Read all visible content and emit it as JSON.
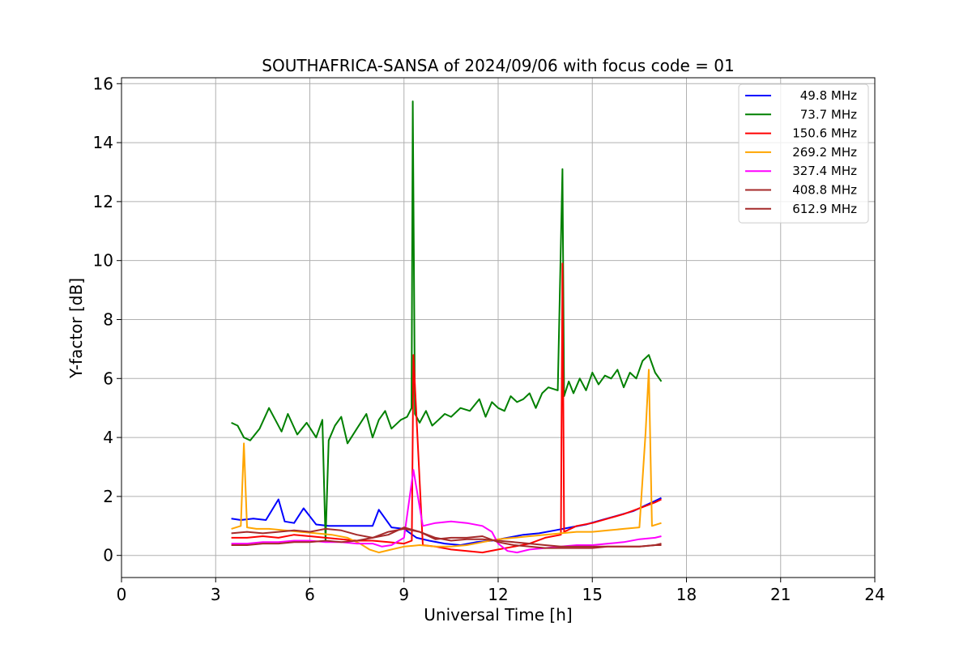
{
  "chart_data": {
    "type": "line",
    "title": "SOUTHAFRICA-SANSA of 2024/09/06 with focus code = 01",
    "xlabel": "Universal Time [h]",
    "ylabel": "Y-factor [dB]",
    "xlim": [
      0,
      24
    ],
    "ylim": [
      -0.75,
      16.2
    ],
    "xticks": [
      0,
      3,
      6,
      9,
      12,
      15,
      18,
      21,
      24
    ],
    "yticks": [
      0,
      2,
      4,
      6,
      8,
      10,
      12,
      14,
      16
    ],
    "grid": true,
    "legend_position": "top-right",
    "series": [
      {
        "name": "49.8 MHz",
        "color": "#0000ff",
        "x": [
          3.5,
          3.8,
          4.2,
          4.6,
          5.0,
          5.2,
          5.5,
          5.8,
          6.2,
          6.6,
          7.0,
          7.5,
          8.0,
          8.2,
          8.6,
          9.0,
          9.4,
          9.8,
          10.3,
          10.8,
          11.3,
          11.8,
          12.3,
          12.8,
          13.3,
          13.8,
          14.3,
          14.8,
          15.3,
          15.8,
          16.3,
          16.7,
          17.0,
          17.2
        ],
        "y": [
          1.25,
          1.2,
          1.25,
          1.2,
          1.9,
          1.15,
          1.1,
          1.6,
          1.05,
          1.0,
          1.0,
          1.0,
          1.0,
          1.55,
          0.95,
          0.9,
          0.6,
          0.5,
          0.4,
          0.35,
          0.45,
          0.5,
          0.6,
          0.7,
          0.75,
          0.85,
          0.95,
          1.05,
          1.2,
          1.35,
          1.5,
          1.7,
          1.85,
          1.95
        ]
      },
      {
        "name": "73.7 MHz",
        "color": "#008000",
        "x": [
          3.5,
          3.7,
          3.9,
          4.1,
          4.4,
          4.7,
          4.9,
          5.1,
          5.3,
          5.6,
          5.9,
          6.2,
          6.4,
          6.5,
          6.6,
          6.8,
          7.0,
          7.2,
          7.5,
          7.8,
          8.0,
          8.2,
          8.4,
          8.6,
          8.9,
          9.1,
          9.24,
          9.28,
          9.35,
          9.5,
          9.7,
          9.9,
          10.1,
          10.3,
          10.5,
          10.8,
          11.1,
          11.4,
          11.6,
          11.8,
          12.0,
          12.2,
          12.4,
          12.6,
          12.8,
          13.0,
          13.2,
          13.4,
          13.6,
          13.9,
          14.05,
          14.1,
          14.25,
          14.4,
          14.6,
          14.8,
          15.0,
          15.2,
          15.4,
          15.6,
          15.8,
          16.0,
          16.2,
          16.4,
          16.6,
          16.8,
          17.0,
          17.2
        ],
        "y": [
          4.5,
          4.4,
          4.0,
          3.9,
          4.3,
          5.0,
          4.6,
          4.2,
          4.8,
          4.1,
          4.5,
          4.0,
          4.6,
          0.5,
          3.9,
          4.4,
          4.7,
          3.8,
          4.3,
          4.8,
          4.0,
          4.6,
          4.9,
          4.3,
          4.6,
          4.7,
          5.0,
          15.4,
          4.8,
          4.5,
          4.9,
          4.4,
          4.6,
          4.8,
          4.7,
          5.0,
          4.9,
          5.3,
          4.7,
          5.2,
          5.0,
          4.9,
          5.4,
          5.2,
          5.3,
          5.5,
          5.0,
          5.5,
          5.7,
          5.6,
          13.1,
          5.4,
          5.9,
          5.5,
          6.0,
          5.6,
          6.2,
          5.8,
          6.1,
          6.0,
          6.3,
          5.7,
          6.2,
          6.0,
          6.6,
          6.8,
          6.2,
          5.9
        ]
      },
      {
        "name": "150.6 MHz",
        "color": "#ff0000",
        "x": [
          3.5,
          4.0,
          4.5,
          5.0,
          5.5,
          6.0,
          6.5,
          7.0,
          7.5,
          8.0,
          8.5,
          9.0,
          9.25,
          9.3,
          9.6,
          10.0,
          10.5,
          11.0,
          11.5,
          12.0,
          12.5,
          13.0,
          13.5,
          14.0,
          14.05,
          14.1,
          14.5,
          15.0,
          15.5,
          16.0,
          16.5,
          17.0,
          17.2
        ],
        "y": [
          0.6,
          0.6,
          0.65,
          0.6,
          0.7,
          0.65,
          0.6,
          0.55,
          0.5,
          0.5,
          0.45,
          0.4,
          0.5,
          6.8,
          0.35,
          0.3,
          0.2,
          0.15,
          0.1,
          0.2,
          0.3,
          0.4,
          0.6,
          0.7,
          9.9,
          0.8,
          1.0,
          1.1,
          1.25,
          1.4,
          1.6,
          1.8,
          1.9
        ]
      },
      {
        "name": "269.2 MHz",
        "color": "#ffa500",
        "x": [
          3.5,
          3.8,
          3.9,
          4.0,
          4.3,
          4.7,
          5.2,
          5.7,
          6.2,
          6.7,
          7.2,
          7.6,
          7.9,
          8.2,
          8.6,
          9.0,
          9.5,
          10.0,
          10.5,
          11.0,
          11.5,
          12.0,
          12.5,
          13.0,
          13.5,
          14.0,
          14.5,
          15.0,
          15.5,
          16.0,
          16.5,
          16.7,
          16.8,
          16.9,
          17.2
        ],
        "y": [
          0.9,
          1.0,
          3.8,
          0.95,
          0.9,
          0.9,
          0.85,
          0.8,
          0.75,
          0.7,
          0.6,
          0.4,
          0.2,
          0.1,
          0.2,
          0.3,
          0.35,
          0.3,
          0.3,
          0.35,
          0.45,
          0.55,
          0.6,
          0.65,
          0.7,
          0.75,
          0.8,
          0.8,
          0.85,
          0.9,
          0.95,
          4.2,
          6.3,
          1.0,
          1.1
        ]
      },
      {
        "name": "327.4 MHz",
        "color": "#ff00ff",
        "x": [
          3.5,
          4.0,
          4.5,
          5.0,
          5.5,
          6.0,
          6.5,
          7.0,
          7.5,
          8.0,
          8.3,
          8.6,
          9.0,
          9.3,
          9.6,
          10.0,
          10.5,
          11.0,
          11.5,
          11.8,
          12.0,
          12.3,
          12.6,
          13.0,
          13.5,
          14.0,
          14.5,
          15.0,
          15.5,
          16.0,
          16.5,
          17.0,
          17.2
        ],
        "y": [
          0.4,
          0.4,
          0.45,
          0.45,
          0.5,
          0.5,
          0.45,
          0.45,
          0.4,
          0.4,
          0.3,
          0.35,
          0.6,
          2.9,
          1.0,
          1.1,
          1.15,
          1.1,
          1.0,
          0.8,
          0.4,
          0.15,
          0.1,
          0.2,
          0.25,
          0.3,
          0.35,
          0.35,
          0.4,
          0.45,
          0.55,
          0.6,
          0.65
        ]
      },
      {
        "name": "408.8 MHz",
        "color": "#a52a2a",
        "x": [
          3.5,
          4.0,
          4.5,
          5.0,
          5.5,
          6.0,
          6.5,
          7.0,
          7.5,
          8.0,
          8.5,
          9.0,
          9.5,
          10.0,
          10.5,
          11.0,
          11.5,
          12.0,
          12.5,
          13.0,
          13.5,
          14.0,
          14.5,
          15.0,
          15.5,
          16.0,
          16.5,
          17.0,
          17.2
        ],
        "y": [
          0.35,
          0.35,
          0.4,
          0.4,
          0.45,
          0.45,
          0.5,
          0.45,
          0.5,
          0.6,
          0.8,
          0.9,
          0.8,
          0.6,
          0.5,
          0.55,
          0.55,
          0.5,
          0.45,
          0.4,
          0.35,
          0.3,
          0.3,
          0.3,
          0.3,
          0.3,
          0.3,
          0.35,
          0.4
        ]
      },
      {
        "name": "612.9 MHz",
        "color": "#a52a2a",
        "x": [
          3.5,
          4.0,
          4.5,
          5.0,
          5.5,
          6.0,
          6.5,
          7.0,
          7.5,
          8.0,
          8.5,
          9.0,
          9.5,
          10.0,
          10.5,
          11.0,
          11.5,
          12.0,
          12.5,
          13.0,
          13.5,
          14.0,
          14.5,
          15.0,
          15.5,
          16.0,
          16.5,
          17.0,
          17.2
        ],
        "y": [
          0.75,
          0.8,
          0.75,
          0.8,
          0.85,
          0.8,
          0.9,
          0.85,
          0.7,
          0.6,
          0.7,
          0.95,
          0.8,
          0.55,
          0.6,
          0.6,
          0.65,
          0.45,
          0.35,
          0.3,
          0.25,
          0.25,
          0.25,
          0.25,
          0.3,
          0.3,
          0.3,
          0.35,
          0.35
        ]
      }
    ]
  }
}
